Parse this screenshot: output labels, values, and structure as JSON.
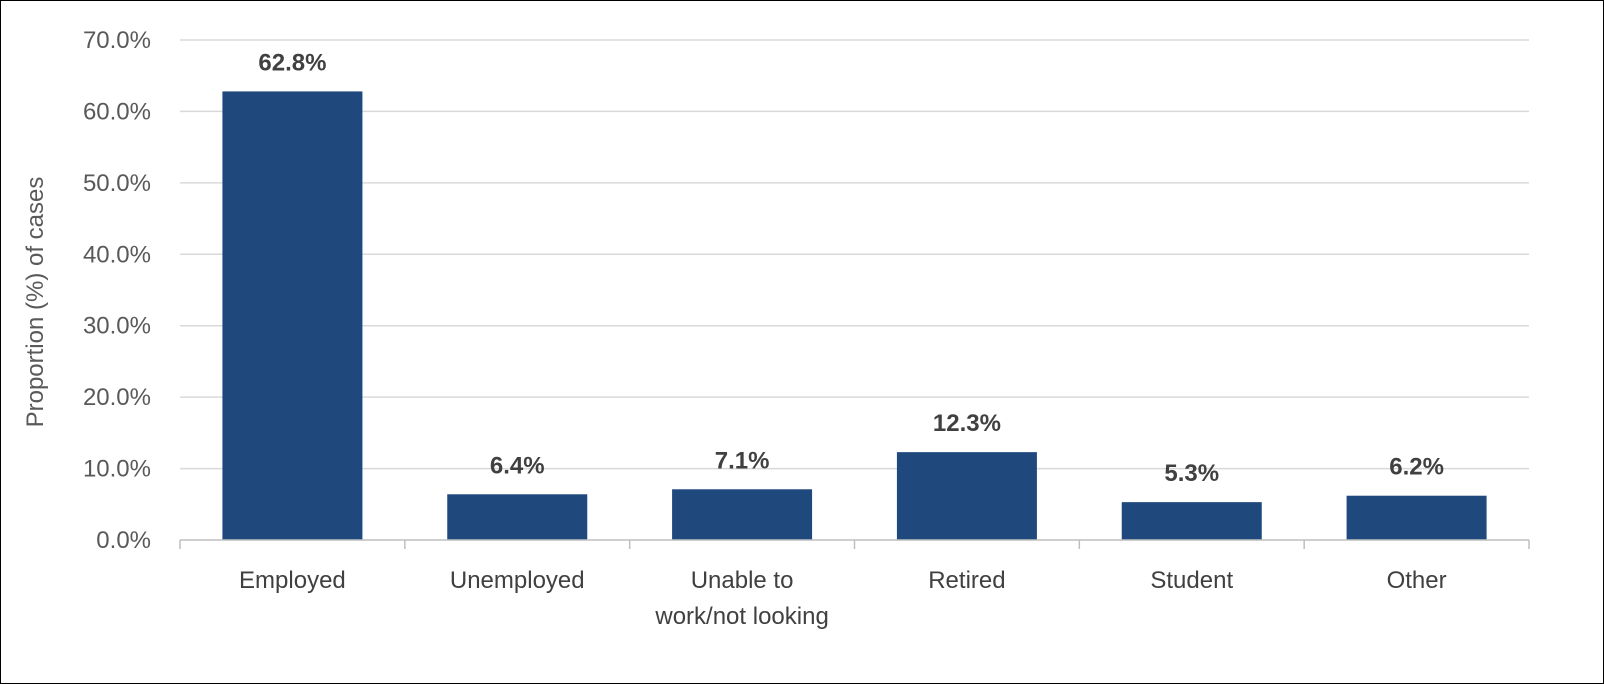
{
  "chart_data": {
    "type": "bar",
    "title": "",
    "xlabel": "",
    "ylabel": "Proportion (%) of cases",
    "ylim": [
      0,
      70
    ],
    "yticks": [
      "0.0%",
      "10.0%",
      "20.0%",
      "30.0%",
      "40.0%",
      "50.0%",
      "60.0%",
      "70.0%"
    ],
    "categories": [
      [
        "Employed"
      ],
      [
        "Unemployed"
      ],
      [
        "Unable to",
        "work/not looking"
      ],
      [
        "Retired"
      ],
      [
        "Student"
      ],
      [
        "Other"
      ]
    ],
    "values": [
      62.8,
      6.4,
      7.1,
      12.3,
      5.3,
      6.2
    ],
    "data_labels": [
      "62.8%",
      "6.4%",
      "7.1%",
      "12.3%",
      "5.3%",
      "6.2%"
    ],
    "grid": true,
    "legend": "none",
    "colors": {
      "bar": "#1f497d",
      "grid": "#d9d9d9",
      "axis": "#bfbfbf"
    }
  }
}
